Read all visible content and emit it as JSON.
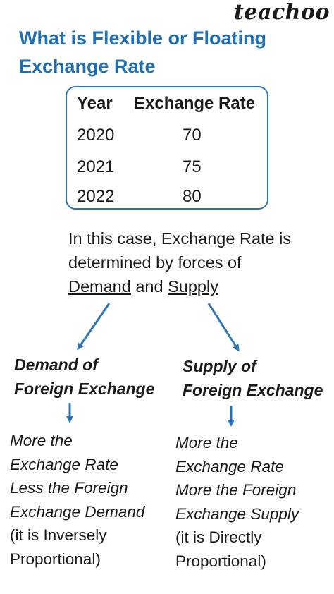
{
  "brand": "teachoo",
  "title": "What is Flexible or Floating Exchange Rate",
  "table": {
    "headers": [
      "Year",
      "Exchange Rate"
    ],
    "rows": [
      [
        "2020",
        "70"
      ],
      [
        "2021",
        "75"
      ],
      [
        "2022",
        "80"
      ]
    ]
  },
  "explanation": {
    "line1": "In this case, Exchange Rate is",
    "line2": "determined by forces of",
    "demand": "Demand",
    "and": " and ",
    "supply": "Supply"
  },
  "left_branch": {
    "heading_line1": "Demand of",
    "heading_line2": "Foreign Exchange",
    "lines": [
      "More the",
      "Exchange Rate",
      "Less the Foreign",
      "Exchange Demand"
    ],
    "note1": "(it is Inversely",
    "note2": "Proportional)"
  },
  "right_branch": {
    "heading_line1": "Supply of",
    "heading_line2": "Foreign Exchange",
    "lines": [
      "More the",
      "Exchange Rate",
      "More the Foreign",
      "Exchange Supply"
    ],
    "note1": "(it is Directly",
    "note2": "Proportional)"
  },
  "colors": {
    "title": "#1f6fb4",
    "box_border": "#2e75b6",
    "arrow": "#2e75b6"
  }
}
